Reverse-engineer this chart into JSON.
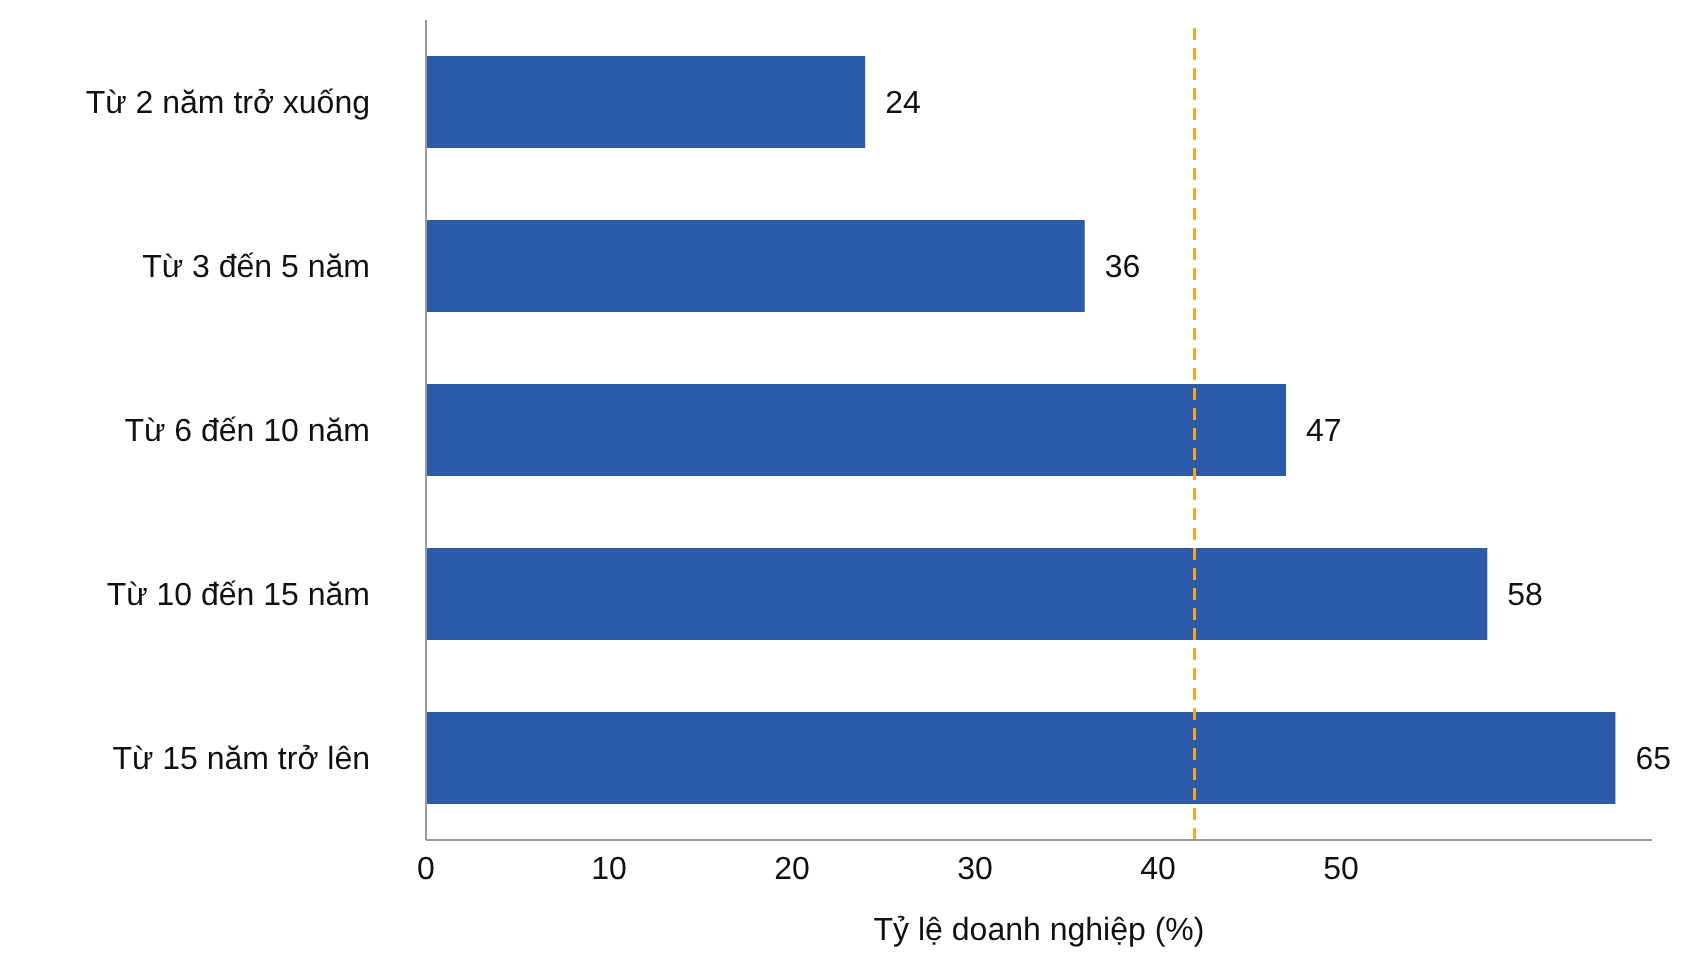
{
  "chart_data": {
    "type": "bar",
    "orientation": "horizontal",
    "xlabel": "Tỷ lệ doanh nghiệp (%)",
    "categories": [
      "Từ 2 năm trở xuống",
      "Từ 3 đến 5 năm",
      "Từ 6 đến 10 năm",
      "Từ 10 đến 15 năm",
      "Từ 15 năm trở lên"
    ],
    "values": [
      24,
      36,
      47,
      58,
      65
    ],
    "color": "#2b5ba8",
    "data_labels": true,
    "xlim": [
      0,
      67
    ],
    "xticks": [
      0,
      10,
      20,
      30,
      40,
      50
    ],
    "grid": false,
    "legend": false,
    "ref_lines": [
      {
        "axis": "x",
        "value": 42,
        "color": "#f5a623",
        "line_style": "dashed"
      }
    ]
  }
}
